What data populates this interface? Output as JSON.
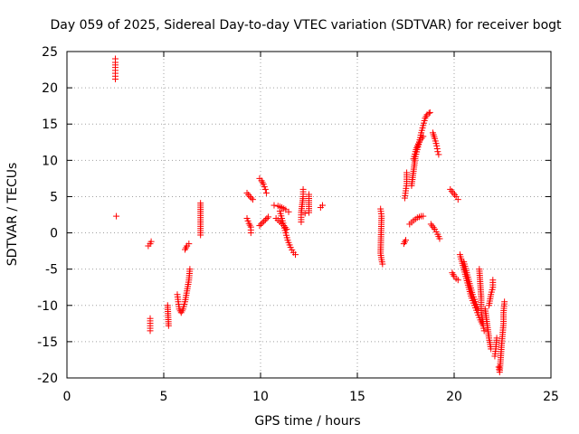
{
  "chart_data": {
    "type": "scatter",
    "title": "Day 059 of 2025, Sidereal Day-to-day VTEC variation (SDTVAR) for receiver bogt",
    "xlabel": "GPS time / hours",
    "ylabel": "SDTVAR / TECUs",
    "xlim": [
      0,
      25
    ],
    "ylim": [
      -20,
      25
    ],
    "xticks": [
      0,
      5,
      10,
      15,
      20,
      25
    ],
    "yticks": [
      -20,
      -15,
      -10,
      -5,
      0,
      5,
      10,
      15,
      20,
      25
    ],
    "grid": true,
    "marker": "+",
    "colors": {
      "series": "#ff0000",
      "grid": "#a0a0a0",
      "axes": "#000000"
    },
    "segments": [
      [
        [
          2.5,
          21.2
        ],
        [
          2.5,
          22.0
        ],
        [
          2.5,
          22.8
        ],
        [
          2.5,
          23.5
        ],
        [
          2.5,
          24.0
        ]
      ],
      [
        [
          2.55,
          2.3
        ]
      ],
      [
        [
          4.2,
          -1.8
        ],
        [
          4.3,
          -1.5
        ],
        [
          4.35,
          -1.2
        ]
      ],
      [
        [
          4.3,
          -11.8
        ],
        [
          4.3,
          -12.8
        ],
        [
          4.3,
          -13.5
        ]
      ],
      [
        [
          5.2,
          -10.0
        ],
        [
          5.25,
          -12.8
        ]
      ],
      [
        [
          5.7,
          -8.5
        ],
        [
          5.75,
          -9.5
        ],
        [
          5.8,
          -10.5
        ],
        [
          5.9,
          -11.0
        ],
        [
          6.0,
          -10.5
        ],
        [
          6.1,
          -9.5
        ],
        [
          6.2,
          -8.0
        ],
        [
          6.3,
          -6.5
        ],
        [
          6.35,
          -5.0
        ]
      ],
      [
        [
          6.1,
          -2.3
        ],
        [
          6.2,
          -1.8
        ],
        [
          6.3,
          -1.5
        ]
      ],
      [
        [
          6.9,
          4.1
        ],
        [
          6.9,
          2.7
        ],
        [
          6.9,
          -0.3
        ]
      ],
      [
        [
          9.3,
          5.5
        ],
        [
          9.45,
          5.0
        ],
        [
          9.6,
          4.6
        ]
      ],
      [
        [
          9.3,
          2.0
        ],
        [
          9.4,
          1.3
        ],
        [
          9.5,
          0.8
        ],
        [
          9.5,
          0.0
        ]
      ],
      [
        [
          9.95,
          7.5
        ],
        [
          10.05,
          7.2
        ],
        [
          10.15,
          6.7
        ],
        [
          10.25,
          6.0
        ],
        [
          10.3,
          5.5
        ]
      ],
      [
        [
          9.95,
          1.0
        ],
        [
          10.1,
          1.4
        ],
        [
          10.25,
          1.8
        ],
        [
          10.4,
          2.2
        ]
      ],
      [
        [
          10.7,
          3.8
        ],
        [
          10.9,
          3.7
        ],
        [
          11.1,
          3.5
        ],
        [
          11.3,
          3.2
        ],
        [
          11.45,
          2.9
        ]
      ],
      [
        [
          10.8,
          2.0
        ],
        [
          11.0,
          1.5
        ],
        [
          11.2,
          1.0
        ],
        [
          11.35,
          0.5
        ]
      ],
      [
        [
          11.0,
          3.0
        ],
        [
          11.1,
          2.0
        ],
        [
          11.2,
          1.0
        ],
        [
          11.3,
          0.0
        ],
        [
          11.4,
          -1.0
        ],
        [
          11.55,
          -2.0
        ],
        [
          11.7,
          -2.7
        ],
        [
          11.8,
          -3.0
        ]
      ],
      [
        [
          12.1,
          1.5
        ],
        [
          12.1,
          2.8
        ],
        [
          12.2,
          5.0
        ],
        [
          12.2,
          6.0
        ]
      ],
      [
        [
          12.3,
          2.7
        ],
        [
          12.5,
          2.8
        ],
        [
          12.5,
          5.3
        ]
      ],
      [
        [
          13.1,
          3.5
        ],
        [
          13.2,
          3.8
        ]
      ],
      [
        [
          16.2,
          3.3
        ],
        [
          16.25,
          2.3
        ],
        [
          16.2,
          -2.8
        ],
        [
          16.25,
          -3.7
        ],
        [
          16.3,
          -4.3
        ]
      ],
      [
        [
          17.4,
          -1.5
        ],
        [
          17.5,
          -1.0
        ]
      ],
      [
        [
          17.45,
          4.8
        ],
        [
          17.5,
          5.8
        ],
        [
          17.55,
          6.8
        ],
        [
          17.55,
          8.3
        ]
      ],
      [
        [
          17.7,
          1.2
        ],
        [
          17.9,
          1.7
        ],
        [
          18.1,
          2.1
        ],
        [
          18.3,
          2.3
        ],
        [
          18.4,
          2.3
        ]
      ],
      [
        [
          17.8,
          6.5
        ],
        [
          17.9,
          8.5
        ],
        [
          18.0,
          10.5
        ],
        [
          18.1,
          11.5
        ],
        [
          18.2,
          12.5
        ],
        [
          18.3,
          13.8
        ],
        [
          18.4,
          14.8
        ],
        [
          18.5,
          15.8
        ],
        [
          18.6,
          16.3
        ],
        [
          18.7,
          16.5
        ],
        [
          18.75,
          16.6
        ]
      ],
      [
        [
          17.9,
          10.2
        ],
        [
          18.0,
          11.2
        ],
        [
          18.1,
          12.0
        ],
        [
          18.25,
          12.8
        ],
        [
          18.4,
          13.3
        ]
      ],
      [
        [
          18.8,
          1.2
        ],
        [
          19.0,
          0.5
        ],
        [
          19.15,
          -0.2
        ],
        [
          19.25,
          -0.8
        ]
      ],
      [
        [
          18.9,
          13.8
        ],
        [
          19.0,
          13.0
        ],
        [
          19.1,
          12.0
        ],
        [
          19.15,
          11.2
        ],
        [
          19.2,
          10.8
        ]
      ],
      [
        [
          19.8,
          6.0
        ],
        [
          19.95,
          5.5
        ],
        [
          20.1,
          5.0
        ],
        [
          20.2,
          4.6
        ]
      ],
      [
        [
          19.9,
          -5.5
        ],
        [
          20.0,
          -6.0
        ],
        [
          20.1,
          -6.3
        ],
        [
          20.2,
          -6.5
        ]
      ],
      [
        [
          20.3,
          -3.0
        ],
        [
          20.45,
          -4.5
        ],
        [
          20.6,
          -6.0
        ],
        [
          20.75,
          -7.5
        ],
        [
          20.9,
          -9.0
        ],
        [
          21.05,
          -10.0
        ],
        [
          21.2,
          -11.0
        ],
        [
          21.35,
          -12.0
        ],
        [
          21.5,
          -12.8
        ],
        [
          21.55,
          -13.5
        ]
      ],
      [
        [
          20.5,
          -4.0
        ],
        [
          20.65,
          -5.5
        ],
        [
          20.8,
          -7.0
        ],
        [
          20.95,
          -8.5
        ],
        [
          21.1,
          -9.5
        ],
        [
          21.25,
          -10.5
        ]
      ],
      [
        [
          21.3,
          -5.0
        ],
        [
          21.35,
          -7.0
        ],
        [
          21.4,
          -9.0
        ],
        [
          21.4,
          -11.0
        ],
        [
          21.5,
          -12.5
        ]
      ],
      [
        [
          21.6,
          -10.5
        ],
        [
          21.7,
          -12.5
        ],
        [
          21.8,
          -14.5
        ],
        [
          21.9,
          -16.0
        ]
      ],
      [
        [
          21.8,
          -10.0
        ],
        [
          21.9,
          -8.5
        ],
        [
          22.0,
          -7.5
        ],
        [
          22.0,
          -6.5
        ]
      ],
      [
        [
          22.1,
          -17.0
        ],
        [
          22.15,
          -16.0
        ],
        [
          22.2,
          -14.5
        ]
      ],
      [
        [
          22.3,
          -18.5
        ],
        [
          22.35,
          -19.2
        ],
        [
          22.4,
          -17.5
        ],
        [
          22.45,
          -15.5
        ],
        [
          22.5,
          -14.0
        ],
        [
          22.55,
          -12.5
        ],
        [
          22.55,
          -11.0
        ],
        [
          22.6,
          -9.5
        ]
      ]
    ]
  }
}
